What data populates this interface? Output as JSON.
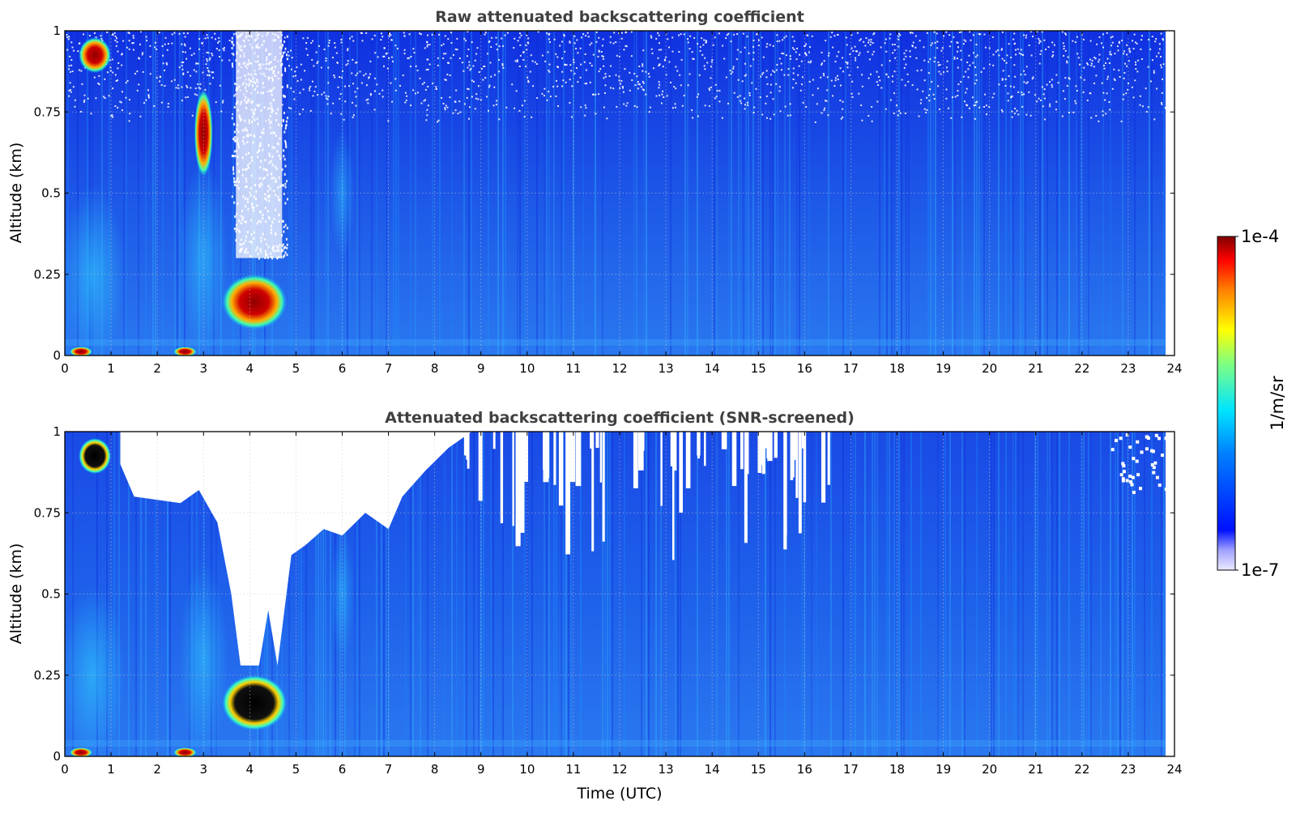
{
  "chart_data": [
    {
      "type": "heatmap",
      "title": "Raw attenuated backscattering coefficient",
      "xlabel": "",
      "ylabel": "Altitude (km)",
      "xlim": [
        0,
        24
      ],
      "ylim": [
        0,
        1
      ],
      "x_ticks": [
        "0",
        "1",
        "2",
        "3",
        "4",
        "5",
        "6",
        "7",
        "8",
        "9",
        "10",
        "11",
        "12",
        "13",
        "14",
        "15",
        "16",
        "17",
        "18",
        "19",
        "20",
        "21",
        "22",
        "23",
        "24"
      ],
      "y_ticks": [
        "0",
        "0.25",
        "0.5",
        "0.75",
        "1"
      ],
      "grid": true,
      "data_extent_hours": [
        0,
        23.8
      ],
      "features": [
        {
          "time_start": 0.3,
          "time_end": 1.0,
          "alt_bottom": 0.87,
          "alt_top": 0.98,
          "level": "high"
        },
        {
          "time_start": 2.8,
          "time_end": 3.2,
          "alt_bottom": 0.55,
          "alt_top": 0.82,
          "level": "high"
        },
        {
          "time_start": 3.4,
          "time_end": 4.8,
          "alt_bottom": 0.08,
          "alt_top": 0.25,
          "level": "high"
        },
        {
          "time_start": 3.7,
          "time_end": 4.7,
          "alt_bottom": 0.3,
          "alt_top": 1.0,
          "level": "none"
        }
      ]
    },
    {
      "type": "heatmap",
      "title": "Attenuated backscattering coefficient (SNR-screened)",
      "xlabel": "Time (UTC)",
      "ylabel": "Altitude (km)",
      "xlim": [
        0,
        24
      ],
      "ylim": [
        0,
        1
      ],
      "x_ticks": [
        "0",
        "1",
        "2",
        "3",
        "4",
        "5",
        "6",
        "7",
        "8",
        "9",
        "10",
        "11",
        "12",
        "13",
        "14",
        "15",
        "16",
        "17",
        "18",
        "19",
        "20",
        "21",
        "22",
        "23",
        "24"
      ],
      "y_ticks": [
        "0",
        "0.25",
        "0.5",
        "0.75",
        "1"
      ],
      "grid": true,
      "data_extent_hours": [
        0,
        23.8
      ],
      "features": [
        {
          "time_start": 0.3,
          "time_end": 1.0,
          "alt_bottom": 0.87,
          "alt_top": 0.98,
          "level": "saturated"
        },
        {
          "time_start": 3.4,
          "time_end": 4.8,
          "alt_bottom": 0.08,
          "alt_top": 0.25,
          "level": "saturated"
        },
        {
          "time_start": 1.5,
          "time_end": 7.2,
          "alt_bottom": 0.65,
          "alt_top": 1.0,
          "level": "screened"
        },
        {
          "time_start": 3.7,
          "time_end": 4.7,
          "alt_bottom": 0.3,
          "alt_top": 1.0,
          "level": "screened"
        }
      ]
    }
  ],
  "colorbar": {
    "label": "1/m/sr",
    "max_label": "1e-4",
    "min_label": "1e-7",
    "colormap": "jet",
    "scale": "log",
    "range": [
      1e-07,
      0.0001
    ]
  },
  "colors": {
    "background": "#1e50e6",
    "screened": "#ffffff",
    "title": "#404040"
  }
}
